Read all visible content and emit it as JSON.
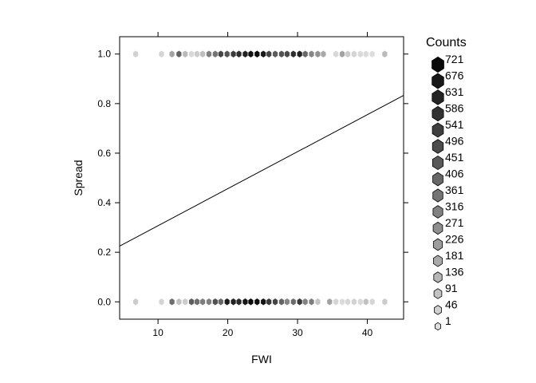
{
  "chart_data": {
    "type": "scatter",
    "subtype": "hexbin",
    "title": "",
    "xlabel": "FWI",
    "ylabel": "Spread",
    "xlim": [
      4.5,
      45.2
    ],
    "ylim": [
      -0.07,
      1.07
    ],
    "x_ticks": [
      10,
      20,
      30,
      40
    ],
    "y_ticks": [
      0.0,
      0.2,
      0.4,
      0.6,
      0.8,
      1.0
    ],
    "y_tick_labels": [
      "0.0",
      "0.2",
      "0.4",
      "0.6",
      "0.8",
      "1.0"
    ],
    "grid": false,
    "legend": {
      "title": "Counts",
      "position": "right",
      "labels": [
        "721",
        "676",
        "631",
        "586",
        "541",
        "496",
        "451",
        "406",
        "361",
        "316",
        "271",
        "226",
        "181",
        "136",
        "91",
        "46",
        "1"
      ]
    },
    "fit_line": {
      "x": [
        4.5,
        45.2
      ],
      "y": [
        0.225,
        0.833
      ]
    },
    "series": [
      {
        "y": 1.0,
        "points": [
          [
            6.8,
            40
          ],
          [
            10.5,
            30
          ],
          [
            12.0,
            200
          ],
          [
            13.0,
            420
          ],
          [
            13.9,
            120
          ],
          [
            14.8,
            20
          ],
          [
            15.6,
            60
          ],
          [
            16.4,
            110
          ],
          [
            17.3,
            320
          ],
          [
            18.2,
            360
          ],
          [
            19.0,
            520
          ],
          [
            19.9,
            470
          ],
          [
            20.8,
            550
          ],
          [
            21.6,
            600
          ],
          [
            22.5,
            640
          ],
          [
            23.3,
            700
          ],
          [
            24.2,
            720
          ],
          [
            25.1,
            670
          ],
          [
            25.9,
            520
          ],
          [
            26.8,
            440
          ],
          [
            27.7,
            470
          ],
          [
            28.5,
            500
          ],
          [
            29.4,
            600
          ],
          [
            30.3,
            640
          ],
          [
            31.1,
            400
          ],
          [
            32.0,
            300
          ],
          [
            32.9,
            260
          ],
          [
            33.7,
            180
          ],
          [
            35.5,
            20
          ],
          [
            36.4,
            200
          ],
          [
            37.2,
            60
          ],
          [
            38.1,
            30
          ],
          [
            39.0,
            15
          ],
          [
            39.8,
            10
          ],
          [
            40.7,
            5
          ],
          [
            42.5,
            120
          ]
        ]
      },
      {
        "y": 0.0,
        "points": [
          [
            6.8,
            60
          ],
          [
            10.5,
            30
          ],
          [
            12.0,
            380
          ],
          [
            13.0,
            100
          ],
          [
            13.9,
            60
          ],
          [
            14.8,
            440
          ],
          [
            15.6,
            380
          ],
          [
            16.4,
            330
          ],
          [
            17.3,
            320
          ],
          [
            18.2,
            480
          ],
          [
            19.0,
            400
          ],
          [
            19.9,
            660
          ],
          [
            20.8,
            640
          ],
          [
            21.6,
            620
          ],
          [
            22.5,
            680
          ],
          [
            23.3,
            720
          ],
          [
            24.2,
            710
          ],
          [
            25.1,
            690
          ],
          [
            25.9,
            560
          ],
          [
            26.8,
            520
          ],
          [
            27.7,
            410
          ],
          [
            28.5,
            300
          ],
          [
            29.4,
            390
          ],
          [
            30.3,
            560
          ],
          [
            31.1,
            310
          ],
          [
            32.0,
            330
          ],
          [
            32.9,
            90
          ],
          [
            34.6,
            200
          ],
          [
            35.5,
            30
          ],
          [
            36.4,
            10
          ],
          [
            37.2,
            25
          ],
          [
            38.1,
            40
          ],
          [
            39.0,
            15
          ],
          [
            39.8,
            100
          ],
          [
            40.7,
            30
          ],
          [
            42.5,
            60
          ]
        ]
      }
    ]
  }
}
